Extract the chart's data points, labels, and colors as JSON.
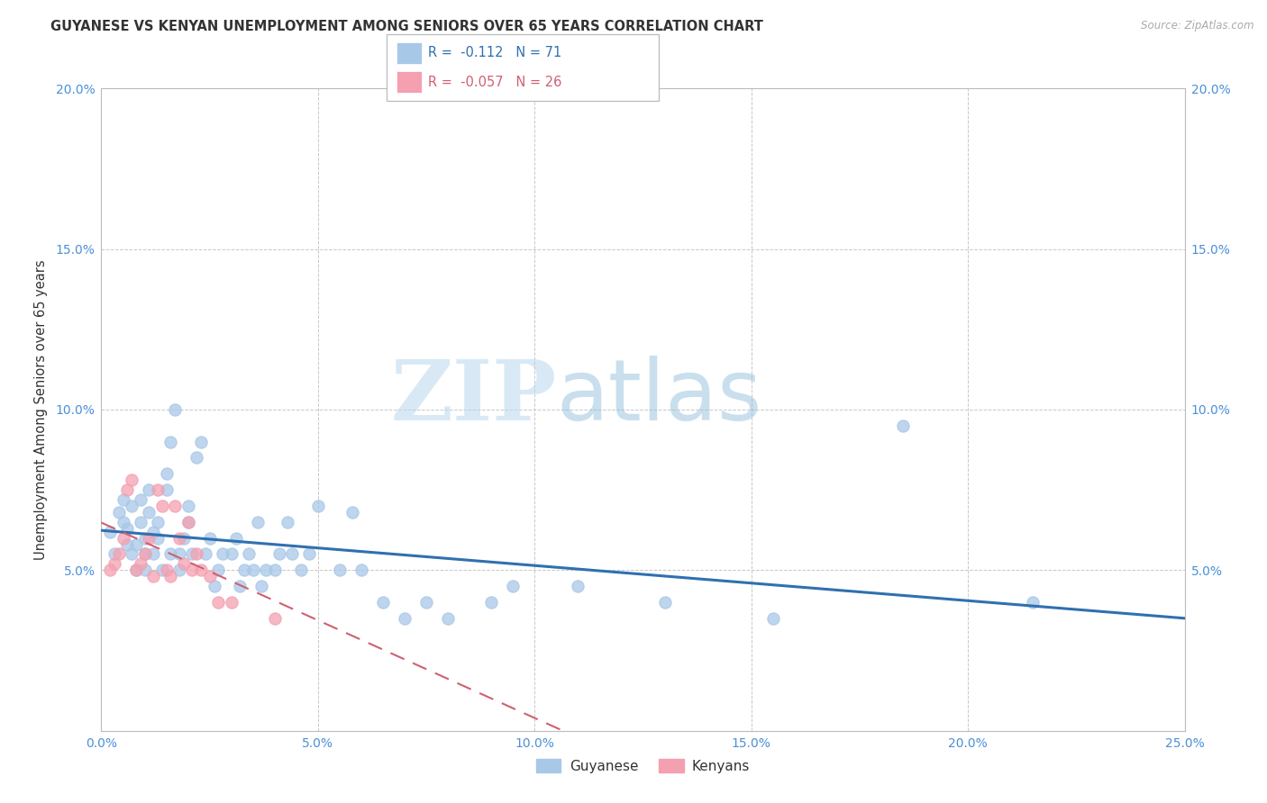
{
  "title": "GUYANESE VS KENYAN UNEMPLOYMENT AMONG SENIORS OVER 65 YEARS CORRELATION CHART",
  "source": "Source: ZipAtlas.com",
  "ylabel": "Unemployment Among Seniors over 65 years",
  "xlim": [
    0.0,
    0.25
  ],
  "ylim": [
    0.0,
    0.2
  ],
  "xticks": [
    0.0,
    0.05,
    0.1,
    0.15,
    0.2,
    0.25
  ],
  "yticks": [
    0.0,
    0.05,
    0.1,
    0.15,
    0.2
  ],
  "xtick_labels": [
    "0.0%",
    "5.0%",
    "10.0%",
    "15.0%",
    "20.0%",
    "25.0%"
  ],
  "ytick_labels_left": [
    "",
    "5.0%",
    "10.0%",
    "15.0%",
    "20.0%"
  ],
  "ytick_labels_right": [
    "",
    "5.0%",
    "10.0%",
    "15.0%",
    "20.0%"
  ],
  "background_color": "#ffffff",
  "watermark_zip": "ZIP",
  "watermark_atlas": "atlas",
  "guyanese_color": "#a8c8e8",
  "kenyan_color": "#f4a0b0",
  "guyanese_line_color": "#3070b0",
  "kenyan_line_color": "#d06070",
  "guyanese_R": "-0.112",
  "guyanese_N": "71",
  "kenyan_R": "-0.057",
  "kenyan_N": "26",
  "guyanese_x": [
    0.002,
    0.003,
    0.004,
    0.005,
    0.005,
    0.006,
    0.006,
    0.007,
    0.007,
    0.008,
    0.008,
    0.009,
    0.009,
    0.01,
    0.01,
    0.01,
    0.011,
    0.011,
    0.012,
    0.012,
    0.013,
    0.013,
    0.014,
    0.015,
    0.015,
    0.016,
    0.016,
    0.017,
    0.018,
    0.018,
    0.019,
    0.02,
    0.02,
    0.021,
    0.022,
    0.023,
    0.024,
    0.025,
    0.026,
    0.027,
    0.028,
    0.03,
    0.031,
    0.032,
    0.033,
    0.034,
    0.035,
    0.036,
    0.037,
    0.038,
    0.04,
    0.041,
    0.043,
    0.044,
    0.046,
    0.048,
    0.05,
    0.055,
    0.058,
    0.06,
    0.065,
    0.07,
    0.075,
    0.08,
    0.09,
    0.095,
    0.11,
    0.13,
    0.155,
    0.185,
    0.215
  ],
  "guyanese_y": [
    0.062,
    0.055,
    0.068,
    0.065,
    0.072,
    0.063,
    0.058,
    0.07,
    0.055,
    0.05,
    0.058,
    0.072,
    0.065,
    0.05,
    0.055,
    0.06,
    0.068,
    0.075,
    0.055,
    0.062,
    0.06,
    0.065,
    0.05,
    0.08,
    0.075,
    0.09,
    0.055,
    0.1,
    0.05,
    0.055,
    0.06,
    0.065,
    0.07,
    0.055,
    0.085,
    0.09,
    0.055,
    0.06,
    0.045,
    0.05,
    0.055,
    0.055,
    0.06,
    0.045,
    0.05,
    0.055,
    0.05,
    0.065,
    0.045,
    0.05,
    0.05,
    0.055,
    0.065,
    0.055,
    0.05,
    0.055,
    0.07,
    0.05,
    0.068,
    0.05,
    0.04,
    0.035,
    0.04,
    0.035,
    0.04,
    0.045,
    0.045,
    0.04,
    0.035,
    0.095,
    0.04
  ],
  "kenyan_x": [
    0.002,
    0.003,
    0.004,
    0.005,
    0.006,
    0.007,
    0.008,
    0.009,
    0.01,
    0.011,
    0.012,
    0.013,
    0.014,
    0.015,
    0.016,
    0.017,
    0.018,
    0.019,
    0.02,
    0.021,
    0.022,
    0.023,
    0.025,
    0.027,
    0.03,
    0.04
  ],
  "kenyan_y": [
    0.05,
    0.052,
    0.055,
    0.06,
    0.075,
    0.078,
    0.05,
    0.052,
    0.055,
    0.06,
    0.048,
    0.075,
    0.07,
    0.05,
    0.048,
    0.07,
    0.06,
    0.052,
    0.065,
    0.05,
    0.055,
    0.05,
    0.048,
    0.04,
    0.04,
    0.035
  ]
}
